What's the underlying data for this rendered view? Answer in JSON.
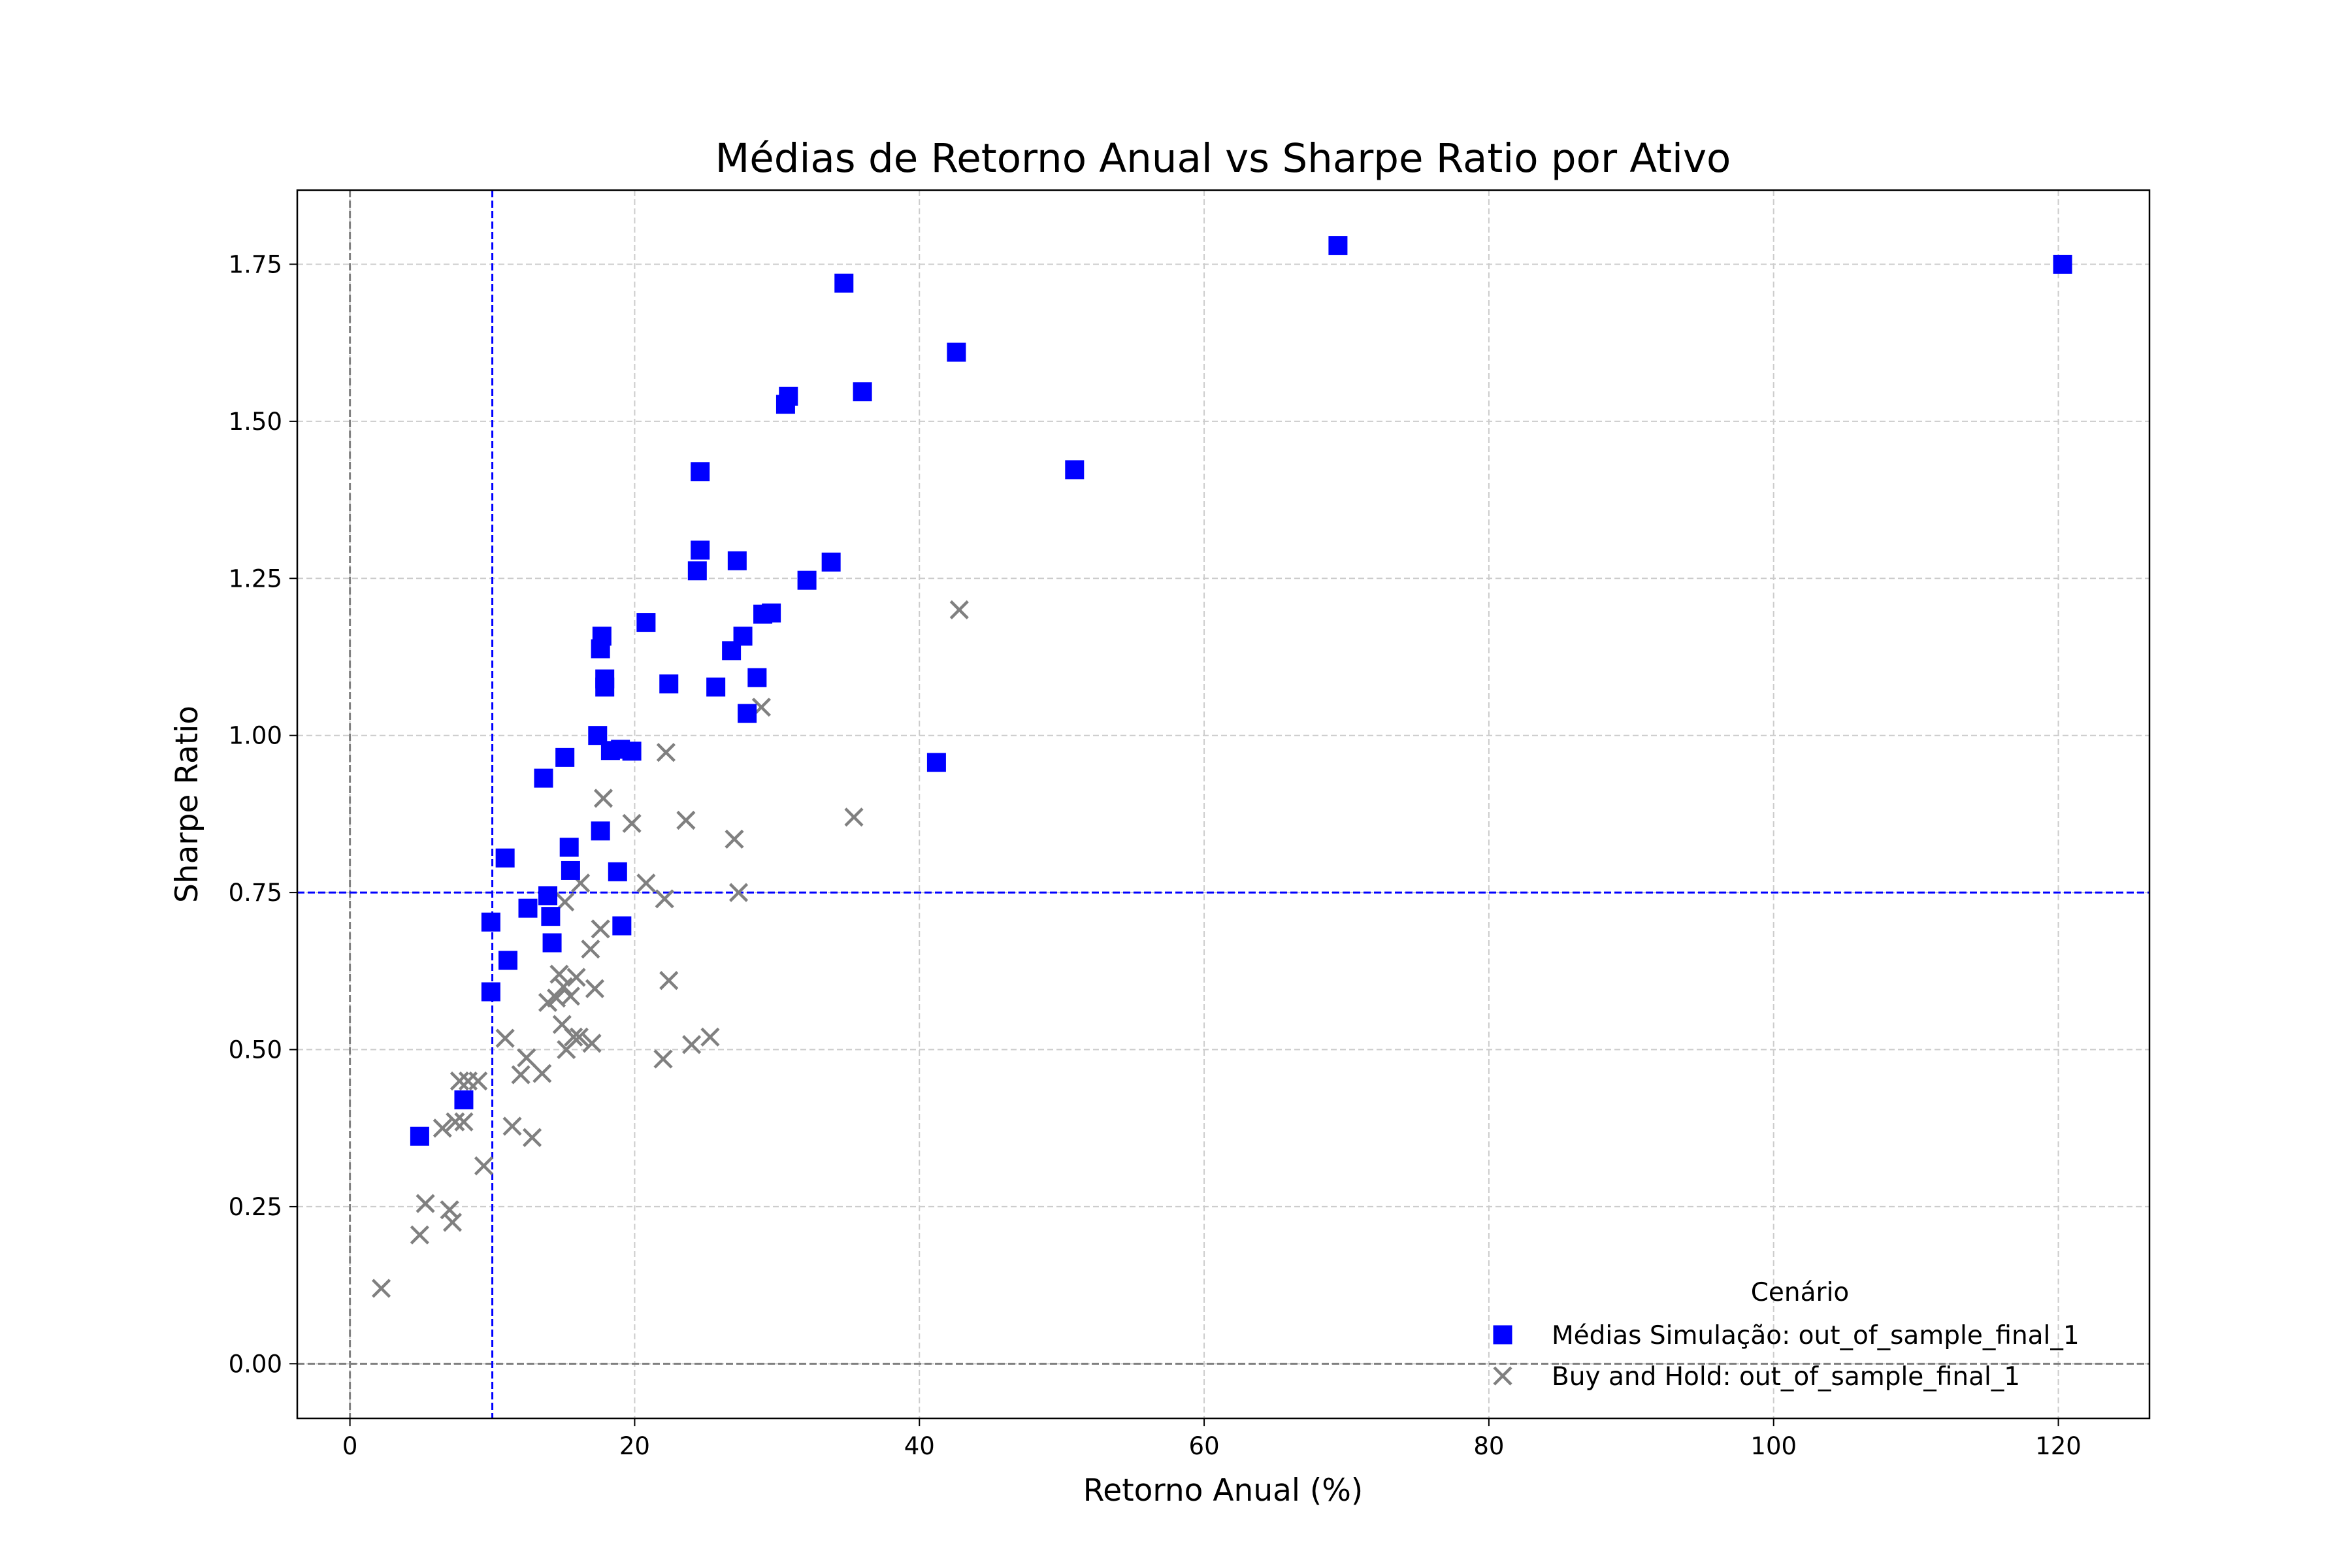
{
  "chart_data": {
    "type": "scatter",
    "title": "Médias de Retorno Anual vs Sharpe Ratio por Ativo",
    "xlabel": "Retorno Anual (%)",
    "ylabel": "Sharpe Ratio",
    "xlim": [
      -3.7,
      126.4
    ],
    "ylim": [
      -0.087,
      1.868
    ],
    "xticks": [
      0,
      20,
      40,
      60,
      80,
      100,
      120
    ],
    "xtick_labels": [
      "0",
      "20",
      "40",
      "60",
      "80",
      "100",
      "120"
    ],
    "yticks": [
      0,
      0.25,
      0.5,
      0.75,
      1.0,
      1.25,
      1.5,
      1.75
    ],
    "ytick_labels": [
      "0.00",
      "0.25",
      "0.50",
      "0.75",
      "1.00",
      "1.25",
      "1.50",
      "1.75"
    ],
    "grid": true,
    "reference_lines": [
      {
        "orientation": "vertical",
        "value": 0,
        "color": "#808080",
        "style": "dashed"
      },
      {
        "orientation": "horizontal",
        "value": 0,
        "color": "#808080",
        "style": "dashed"
      },
      {
        "orientation": "vertical",
        "value": 10,
        "color": "#0000ff",
        "style": "dashed"
      },
      {
        "orientation": "horizontal",
        "value": 0.75,
        "color": "#0000ff",
        "style": "dashed"
      }
    ],
    "legend": {
      "title": "Cenário",
      "position": "lower-right"
    },
    "series": [
      {
        "name": "Médias Simulação: out_of_sample_final_1",
        "marker": "square",
        "color": "#0000ff",
        "points": [
          [
            4.9,
            0.362
          ],
          [
            8.0,
            0.42
          ],
          [
            9.9,
            0.592
          ],
          [
            9.9,
            0.703
          ],
          [
            10.9,
            0.805
          ],
          [
            11.1,
            0.642
          ],
          [
            12.5,
            0.725
          ],
          [
            13.6,
            0.932
          ],
          [
            13.9,
            0.745
          ],
          [
            14.1,
            0.712
          ],
          [
            14.2,
            0.67
          ],
          [
            15.1,
            0.965
          ],
          [
            15.4,
            0.822
          ],
          [
            15.5,
            0.785
          ],
          [
            17.4,
            1.0
          ],
          [
            17.6,
            1.138
          ],
          [
            17.6,
            0.848
          ],
          [
            17.7,
            1.158
          ],
          [
            17.9,
            1.09
          ],
          [
            17.9,
            1.077
          ],
          [
            18.3,
            0.976
          ],
          [
            18.8,
            0.783
          ],
          [
            19.0,
            0.978
          ],
          [
            19.1,
            0.697
          ],
          [
            19.8,
            0.975
          ],
          [
            20.8,
            1.18
          ],
          [
            22.4,
            1.082
          ],
          [
            24.4,
            1.262
          ],
          [
            24.6,
            1.295
          ],
          [
            24.6,
            1.42
          ],
          [
            25.7,
            1.077
          ],
          [
            26.8,
            1.135
          ],
          [
            27.2,
            1.278
          ],
          [
            27.6,
            1.158
          ],
          [
            27.9,
            1.035
          ],
          [
            28.6,
            1.092
          ],
          [
            29.0,
            1.193
          ],
          [
            29.6,
            1.195
          ],
          [
            30.6,
            1.527
          ],
          [
            30.8,
            1.54
          ],
          [
            32.1,
            1.247
          ],
          [
            33.8,
            1.276
          ],
          [
            34.7,
            1.72
          ],
          [
            36.0,
            1.547
          ],
          [
            41.2,
            0.957
          ],
          [
            42.6,
            1.61
          ],
          [
            50.9,
            1.423
          ],
          [
            69.4,
            1.78
          ],
          [
            120.3,
            1.75
          ]
        ]
      },
      {
        "name": "Buy and Hold: out_of_sample_final_1",
        "marker": "x",
        "color": "#808080",
        "points": [
          [
            2.2,
            0.12
          ],
          [
            4.9,
            0.205
          ],
          [
            5.3,
            0.255
          ],
          [
            6.5,
            0.375
          ],
          [
            7.0,
            0.245
          ],
          [
            7.2,
            0.225
          ],
          [
            7.4,
            0.385
          ],
          [
            7.7,
            0.45
          ],
          [
            8.0,
            0.385
          ],
          [
            8.3,
            0.45
          ],
          [
            9.0,
            0.45
          ],
          [
            9.4,
            0.315
          ],
          [
            10.9,
            0.518
          ],
          [
            11.4,
            0.378
          ],
          [
            12.0,
            0.46
          ],
          [
            12.4,
            0.487
          ],
          [
            12.8,
            0.36
          ],
          [
            13.5,
            0.462
          ],
          [
            13.9,
            0.575
          ],
          [
            14.5,
            0.582
          ],
          [
            14.7,
            0.62
          ],
          [
            14.9,
            0.54
          ],
          [
            15.0,
            0.6
          ],
          [
            15.1,
            0.735
          ],
          [
            15.2,
            0.5
          ],
          [
            15.5,
            0.585
          ],
          [
            15.7,
            0.52
          ],
          [
            15.9,
            0.615
          ],
          [
            16.1,
            0.52
          ],
          [
            16.2,
            0.765
          ],
          [
            16.9,
            0.66
          ],
          [
            17.0,
            0.51
          ],
          [
            17.2,
            0.597
          ],
          [
            17.6,
            0.692
          ],
          [
            17.8,
            0.9
          ],
          [
            19.8,
            0.86
          ],
          [
            20.8,
            0.765
          ],
          [
            22.0,
            0.485
          ],
          [
            22.1,
            0.74
          ],
          [
            22.2,
            0.973
          ],
          [
            22.4,
            0.61
          ],
          [
            23.6,
            0.865
          ],
          [
            24.0,
            0.508
          ],
          [
            25.3,
            0.52
          ],
          [
            27.0,
            0.835
          ],
          [
            27.3,
            0.75
          ],
          [
            28.9,
            1.045
          ],
          [
            35.4,
            0.87
          ],
          [
            42.8,
            1.2
          ]
        ]
      }
    ]
  }
}
